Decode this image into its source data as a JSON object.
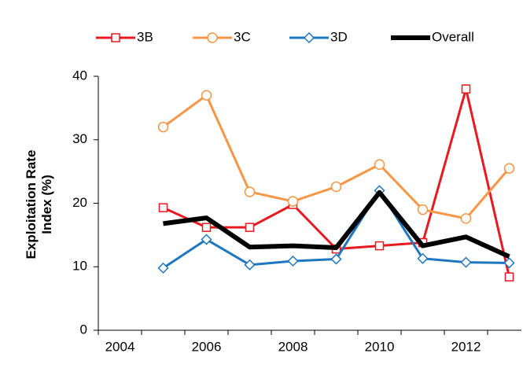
{
  "chart_data": {
    "type": "line",
    "y_label": "Exploitation Rate Index (%)",
    "x": [
      2005,
      2006,
      2007,
      2008,
      2009,
      2010,
      2011,
      2012,
      2013
    ],
    "xlim": [
      2003.5,
      2013.5
    ],
    "xticks": [
      2004,
      2006,
      2008,
      2010,
      2012
    ],
    "ylim": [
      0,
      40
    ],
    "yticks": [
      0,
      10,
      20,
      30,
      40
    ],
    "legend": "top",
    "series": [
      {
        "name": "3B",
        "color": "#e8191f",
        "marker": "square",
        "values": [
          19.3,
          16.2,
          16.2,
          19.8,
          12.8,
          13.3,
          13.8,
          38,
          8.4
        ]
      },
      {
        "name": "3C",
        "color": "#f79646",
        "marker": "circle",
        "values": [
          32,
          37,
          21.8,
          20.3,
          22.6,
          26.1,
          19,
          17.6,
          25.5
        ]
      },
      {
        "name": "3D",
        "color": "#1f77c0",
        "marker": "diamond",
        "values": [
          9.8,
          14.3,
          10.3,
          10.9,
          11.2,
          22,
          11.3,
          10.7,
          10.6
        ]
      },
      {
        "name": "Overall",
        "color": "#000000",
        "marker": "none",
        "values": [
          16.8,
          17.7,
          13.1,
          13.3,
          13,
          21.7,
          13.3,
          14.7,
          11.6
        ]
      }
    ]
  }
}
